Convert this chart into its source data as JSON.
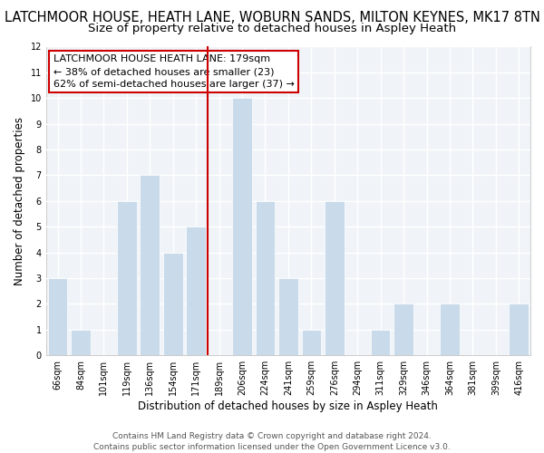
{
  "title": "LATCHMOOR HOUSE, HEATH LANE, WOBURN SANDS, MILTON KEYNES, MK17 8TN",
  "subtitle": "Size of property relative to detached houses in Aspley Heath",
  "xlabel": "Distribution of detached houses by size in Aspley Heath",
  "ylabel": "Number of detached properties",
  "categories": [
    "66sqm",
    "84sqm",
    "101sqm",
    "119sqm",
    "136sqm",
    "154sqm",
    "171sqm",
    "189sqm",
    "206sqm",
    "224sqm",
    "241sqm",
    "259sqm",
    "276sqm",
    "294sqm",
    "311sqm",
    "329sqm",
    "346sqm",
    "364sqm",
    "381sqm",
    "399sqm",
    "416sqm"
  ],
  "values": [
    3,
    1,
    0,
    6,
    7,
    4,
    5,
    0,
    10,
    6,
    3,
    1,
    6,
    0,
    1,
    2,
    0,
    2,
    0,
    0,
    2
  ],
  "bar_color": "#c9daea",
  "bar_edge_color": "#ffffff",
  "ref_line_color": "#cc0000",
  "annotation_line1": "LATCHMOOR HOUSE HEATH LANE: 179sqm",
  "annotation_line2": "← 38% of detached houses are smaller (23)",
  "annotation_line3": "62% of semi-detached houses are larger (37) →",
  "annotation_box_color": "#ffffff",
  "annotation_box_edge": "#cc0000",
  "ylim": [
    0,
    12
  ],
  "yticks": [
    0,
    1,
    2,
    3,
    4,
    5,
    6,
    7,
    8,
    9,
    10,
    11,
    12
  ],
  "footer_text": "Contains HM Land Registry data © Crown copyright and database right 2024.\nContains public sector information licensed under the Open Government Licence v3.0.",
  "bg_color": "#ffffff",
  "plot_bg_color": "#f0f4f8",
  "grid_color": "#ffffff",
  "title_fontsize": 10.5,
  "subtitle_fontsize": 9.5,
  "axis_label_fontsize": 8.5,
  "tick_fontsize": 7,
  "footer_fontsize": 6.5,
  "annotation_fontsize": 8
}
